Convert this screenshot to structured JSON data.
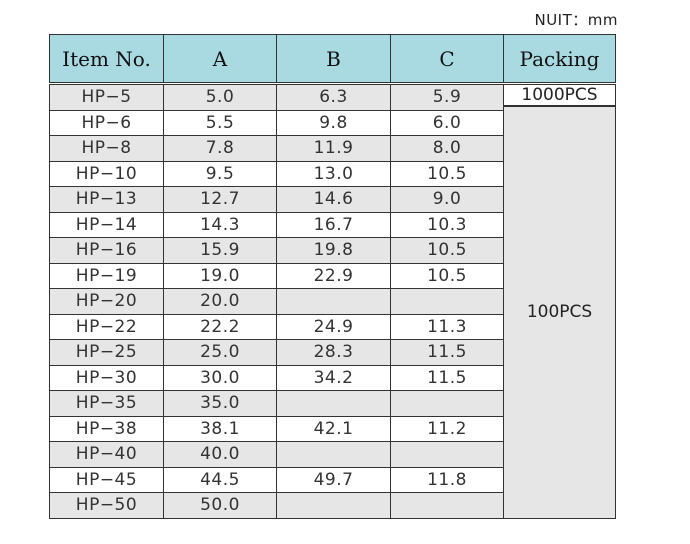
{
  "unit_label": "NUIT：mm",
  "headers": [
    "Item No.",
    "A",
    "B",
    "C",
    "Packing"
  ],
  "rows": [
    [
      "HP−5",
      "5.0",
      "6.3",
      "5.9"
    ],
    [
      "HP−6",
      "5.5",
      "9.8",
      "6.0"
    ],
    [
      "HP−8",
      "7.8",
      "11.9",
      "8.0"
    ],
    [
      "HP−10",
      "9.5",
      "13.0",
      "10.5"
    ],
    [
      "HP−13",
      "12.7",
      "14.6",
      "9.0"
    ],
    [
      "HP−14",
      "14.3",
      "16.7",
      "10.3"
    ],
    [
      "HP−16",
      "15.9",
      "19.8",
      "10.5"
    ],
    [
      "HP−19",
      "19.0",
      "22.9",
      "10.5"
    ],
    [
      "HP−20",
      "20.0",
      "",
      ""
    ],
    [
      "HP−22",
      "22.2",
      "24.9",
      "11.3"
    ],
    [
      "HP−25",
      "25.0",
      "28.3",
      "11.5"
    ],
    [
      "HP−30",
      "30.0",
      "34.2",
      "11.5"
    ],
    [
      "HP−35",
      "35.0",
      "",
      ""
    ],
    [
      "HP−38",
      "38.1",
      "42.1",
      "11.2"
    ],
    [
      "HP−40",
      "40.0",
      "",
      ""
    ],
    [
      "HP−45",
      "44.5",
      "49.7",
      "11.8"
    ],
    [
      "HP−50",
      "50.0",
      "",
      ""
    ]
  ],
  "packing": [
    "1000PCS",
    "100PCS"
  ],
  "colors": {
    "header_bg": "#a9d9e1",
    "row_shade": "#e6e6e6",
    "row_plain": "#ffffff"
  }
}
